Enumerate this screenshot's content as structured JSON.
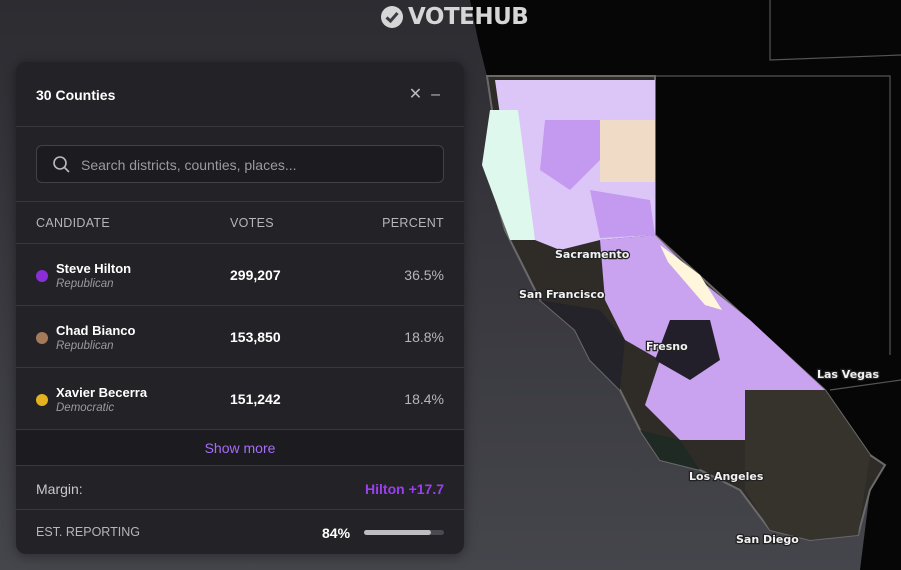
{
  "brand": "VOTEHUB",
  "panel": {
    "title": "30 Counties",
    "search_placeholder": "Search districts, counties, places...",
    "headers": [
      "CANDIDATE",
      "VOTES",
      "PERCENT"
    ],
    "candidates": [
      {
        "name": "Steve Hilton",
        "party": "Republican",
        "votes": "299,207",
        "percent": "36.5%",
        "color": "#8a2fd8"
      },
      {
        "name": "Chad Bianco",
        "party": "Republican",
        "votes": "153,850",
        "percent": "18.8%",
        "color": "#a57a5a"
      },
      {
        "name": "Xavier Becerra",
        "party": "Democratic",
        "votes": "151,242",
        "percent": "18.4%",
        "color": "#e3b21f"
      }
    ],
    "show_more": "Show more",
    "margin_label": "Margin:",
    "margin_value": "Hilton +17.7",
    "margin_color": "#9b3ef0",
    "reporting_label": "EST. REPORTING",
    "reporting": {
      "value": 84,
      "label": "84%"
    }
  },
  "map": {
    "labels": [
      "Sacramento",
      "San Francisco",
      "Fresno",
      "Las Vegas",
      "Los Angeles",
      "San Diego"
    ]
  }
}
